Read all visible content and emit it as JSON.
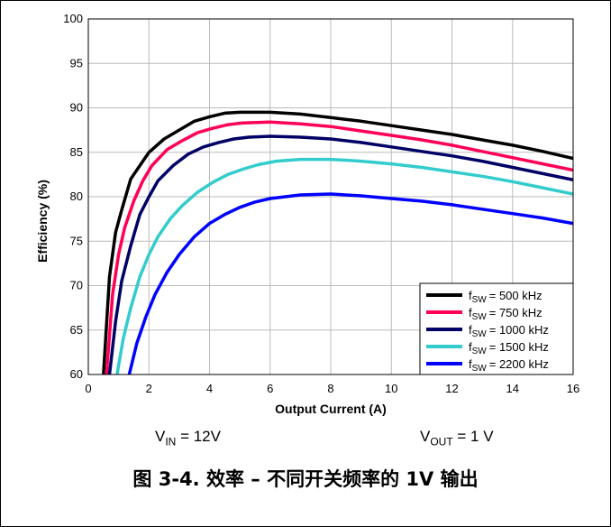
{
  "chart_data": {
    "type": "line",
    "xlabel": "Output Current (A)",
    "ylabel": "Efficiency (%)",
    "xlim": [
      0,
      16
    ],
    "ylim": [
      60,
      100
    ],
    "xticks": [
      "0",
      "2",
      "4",
      "6",
      "8",
      "10",
      "12",
      "14",
      "16"
    ],
    "yticks": [
      "60",
      "65",
      "70",
      "75",
      "80",
      "85",
      "90",
      "95",
      "100"
    ],
    "grid": true,
    "legend_position": "bottom-right",
    "series": [
      {
        "name": "= 500 kHz",
        "fsw": "SW",
        "color": "#000000",
        "x": [
          0.5,
          0.7,
          0.9,
          1.1,
          1.4,
          1.7,
          2.0,
          2.5,
          3.0,
          3.5,
          4.0,
          4.5,
          5.0,
          6.0,
          7.0,
          8.0,
          9.0,
          10.0,
          11.0,
          12.0,
          13.0,
          14.0,
          15.0,
          16.0
        ],
        "y": [
          60.0,
          71.0,
          76.0,
          78.5,
          82.0,
          83.5,
          85.0,
          86.5,
          87.5,
          88.5,
          89.0,
          89.4,
          89.5,
          89.5,
          89.3,
          88.9,
          88.5,
          88.0,
          87.5,
          87.0,
          86.4,
          85.8,
          85.1,
          84.3
        ]
      },
      {
        "name": "= 750 kHz",
        "fsw": "SW",
        "color": "#ff0055",
        "x": [
          0.6,
          0.8,
          1.0,
          1.2,
          1.5,
          1.8,
          2.1,
          2.6,
          3.1,
          3.6,
          4.1,
          4.6,
          5.1,
          6.0,
          7.0,
          8.0,
          9.0,
          10.0,
          11.0,
          12.0,
          13.0,
          14.0,
          15.0,
          16.0
        ],
        "y": [
          60.0,
          69.0,
          73.5,
          76.5,
          79.5,
          81.8,
          83.5,
          85.3,
          86.3,
          87.2,
          87.7,
          88.1,
          88.3,
          88.4,
          88.2,
          87.9,
          87.4,
          86.9,
          86.4,
          85.8,
          85.1,
          84.4,
          83.7,
          83.0
        ]
      },
      {
        "name": "= 1000 kHz",
        "fsw": "SW",
        "color": "#000066",
        "x": [
          0.7,
          0.9,
          1.1,
          1.4,
          1.7,
          2.0,
          2.3,
          2.8,
          3.3,
          3.8,
          4.3,
          4.8,
          5.3,
          6.0,
          7.0,
          8.0,
          9.0,
          10.0,
          11.0,
          12.0,
          13.0,
          14.0,
          15.0,
          16.0
        ],
        "y": [
          60.0,
          66.0,
          70.5,
          74.5,
          78.0,
          80.0,
          81.8,
          83.5,
          84.8,
          85.6,
          86.1,
          86.5,
          86.7,
          86.8,
          86.7,
          86.5,
          86.1,
          85.6,
          85.1,
          84.6,
          84.0,
          83.3,
          82.6,
          81.9
        ]
      },
      {
        "name": "= 1500 kHz",
        "fsw": "SW",
        "color": "#33cccc",
        "x": [
          0.95,
          1.15,
          1.4,
          1.7,
          2.0,
          2.3,
          2.7,
          3.1,
          3.6,
          4.1,
          4.6,
          5.1,
          5.6,
          6.2,
          7.0,
          8.0,
          9.0,
          10.0,
          11.0,
          12.0,
          13.0,
          14.0,
          15.0,
          16.0
        ],
        "y": [
          60.0,
          64.0,
          67.5,
          71.0,
          73.5,
          75.5,
          77.5,
          79.0,
          80.5,
          81.6,
          82.5,
          83.1,
          83.6,
          84.0,
          84.2,
          84.2,
          84.0,
          83.7,
          83.3,
          82.8,
          82.3,
          81.7,
          81.0,
          80.3
        ]
      },
      {
        "name": "= 2200 kHz",
        "fsw": "SW",
        "color": "#0000ff",
        "x": [
          1.35,
          1.6,
          1.9,
          2.2,
          2.6,
          3.0,
          3.5,
          4.0,
          4.5,
          5.0,
          5.5,
          6.0,
          7.0,
          8.0,
          9.0,
          10.0,
          11.0,
          12.0,
          13.0,
          14.0,
          15.0,
          16.0
        ],
        "y": [
          60.0,
          63.5,
          66.5,
          69.0,
          71.5,
          73.5,
          75.5,
          77.0,
          78.0,
          78.8,
          79.4,
          79.8,
          80.2,
          80.3,
          80.1,
          79.8,
          79.5,
          79.1,
          78.6,
          78.1,
          77.6,
          77.0
        ]
      }
    ]
  },
  "conditions": {
    "vin_v": "V",
    "vin_sub": "IN",
    "vin_rest": " = 12V",
    "vout_v": "V",
    "vout_sub": "OUT",
    "vout_rest": " = 1 V"
  },
  "caption": "图 3-4. 效率 – 不同开关频率的 1V 输出"
}
